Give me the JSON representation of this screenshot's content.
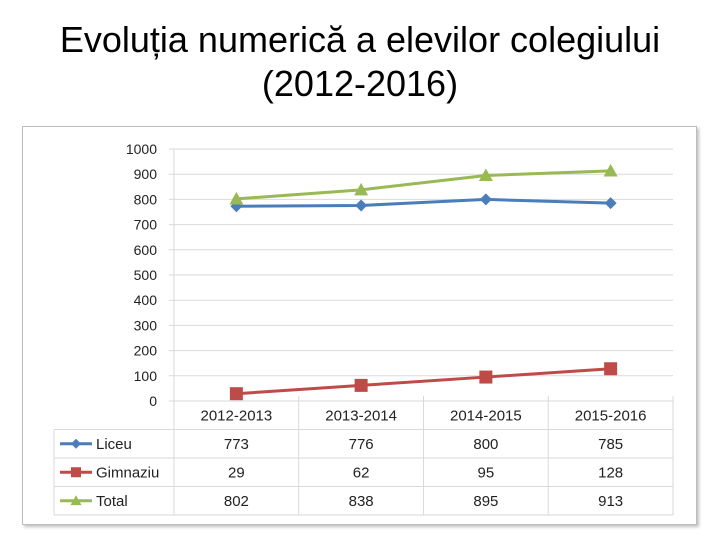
{
  "title_line1": "Evoluția numerică a elevilor colegiului",
  "title_line2": "(2012-2016)",
  "colors": {
    "liceu": "#4a7ebb",
    "gimnaziu": "#be4b48",
    "total": "#98b954",
    "grid": "#d9d9d9"
  },
  "chart_data": {
    "type": "line",
    "title": "Evoluția numerică a elevilor colegiului (2012-2016)",
    "categories": [
      "2012-2013",
      "2013-2014",
      "2014-2015",
      "2015-2016"
    ],
    "ylim": [
      0,
      1000
    ],
    "yticks": [
      0,
      100,
      200,
      300,
      400,
      500,
      600,
      700,
      800,
      900,
      1000
    ],
    "grid": true,
    "legend": "data table below",
    "series": [
      {
        "name": "Liceu",
        "marker": "diamond",
        "color": "#4a7ebb",
        "values": [
          773,
          776,
          800,
          785
        ]
      },
      {
        "name": "Gimnaziu",
        "marker": "square",
        "color": "#be4b48",
        "values": [
          29,
          62,
          95,
          128
        ]
      },
      {
        "name": "Total",
        "marker": "triangle",
        "color": "#98b954",
        "values": [
          802,
          838,
          895,
          913
        ]
      }
    ]
  }
}
